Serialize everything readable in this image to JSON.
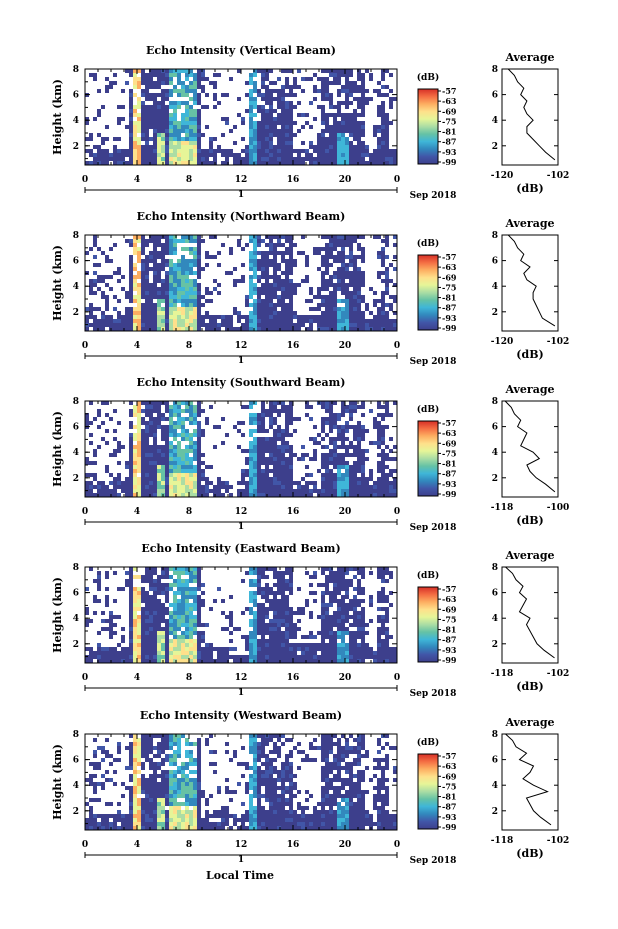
{
  "xlabel": "Local Time",
  "colorbar_unit": "(dB)",
  "colorbar_ticks": [
    "-57",
    "-63",
    "-69",
    "-75",
    "-81",
    "-87",
    "-93",
    "-99"
  ],
  "colorbar_colors": [
    "#d73027",
    "#f46d43",
    "#fdae61",
    "#fee08b",
    "#e6f598",
    "#abdda4",
    "#66c2a5",
    "#3fb6d8",
    "#3288bd",
    "#4156a8",
    "#3d3f8c"
  ],
  "chart_data": [
    {
      "type": "heatmap",
      "title": "Echo Intensity (Vertical Beam)",
      "ylabel": "Height (km)",
      "xticks": [
        "0",
        "4",
        "8",
        "12",
        "16",
        "20",
        "0"
      ],
      "yticks": [
        "2",
        "4",
        "6",
        "8"
      ],
      "day_label": "1",
      "month_label": "Sep 2018",
      "xlim": [
        0,
        24
      ],
      "ylim": [
        0.5,
        8
      ],
      "profile": {
        "title": "Average",
        "xlabel": "(dB)",
        "xticks": [
          "-120",
          "-102"
        ],
        "yticks": [
          "2",
          "4",
          "6",
          "8"
        ],
        "xlim": [
          -120,
          -102
        ],
        "ylim": [
          0.5,
          8
        ],
        "height_km": [
          0.9,
          1.5,
          2.0,
          2.5,
          3.0,
          3.5,
          4.0,
          4.5,
          5.0,
          5.5,
          6.0,
          6.5,
          7.0,
          7.5,
          8.0
        ],
        "value_db": [
          -103,
          -106,
          -108,
          -110,
          -112,
          -112,
          -110,
          -112,
          -113,
          -112,
          -114,
          -113,
          -115,
          -116,
          -118
        ]
      }
    },
    {
      "type": "heatmap",
      "title": "Echo Intensity (Northward Beam)",
      "ylabel": "Height (km)",
      "xticks": [
        "0",
        "4",
        "8",
        "12",
        "16",
        "20",
        "0"
      ],
      "yticks": [
        "2",
        "4",
        "6",
        "8"
      ],
      "day_label": "1",
      "month_label": "Sep 2018",
      "xlim": [
        0,
        24
      ],
      "ylim": [
        0.5,
        8
      ],
      "profile": {
        "title": "Average",
        "xlabel": "(dB)",
        "xticks": [
          "-120",
          "-102"
        ],
        "yticks": [
          "2",
          "4",
          "6",
          "8"
        ],
        "xlim": [
          -120,
          -102
        ],
        "ylim": [
          0.5,
          8
        ],
        "height_km": [
          0.9,
          1.5,
          2.0,
          2.5,
          3.0,
          3.5,
          4.0,
          4.5,
          5.0,
          5.5,
          6.0,
          6.5,
          7.0,
          7.5,
          8.0
        ],
        "value_db": [
          -103,
          -107,
          -108,
          -109,
          -110,
          -110,
          -109,
          -112,
          -113,
          -111,
          -114,
          -113,
          -115,
          -116,
          -118
        ]
      }
    },
    {
      "type": "heatmap",
      "title": "Echo Intensity (Southward Beam)",
      "ylabel": "Height (km)",
      "xticks": [
        "0",
        "4",
        "8",
        "12",
        "16",
        "20",
        "0"
      ],
      "yticks": [
        "2",
        "4",
        "6",
        "8"
      ],
      "day_label": "1",
      "month_label": "Sep 2018",
      "xlim": [
        0,
        24
      ],
      "ylim": [
        0.5,
        8
      ],
      "profile": {
        "title": "Average",
        "xlabel": "(dB)",
        "xticks": [
          "-118",
          "-100"
        ],
        "yticks": [
          "2",
          "4",
          "6",
          "8"
        ],
        "xlim": [
          -118,
          -100
        ],
        "ylim": [
          0.5,
          8
        ],
        "height_km": [
          0.9,
          1.5,
          2.0,
          2.5,
          3.0,
          3.5,
          4.0,
          4.5,
          5.0,
          5.5,
          6.0,
          6.5,
          7.0,
          7.5,
          8.0
        ],
        "value_db": [
          -101,
          -104,
          -107,
          -109,
          -110,
          -106,
          -108,
          -112,
          -111,
          -110,
          -113,
          -112,
          -114,
          -115,
          -117
        ]
      }
    },
    {
      "type": "heatmap",
      "title": "Echo Intensity (Eastward Beam)",
      "ylabel": "Height (km)",
      "xticks": [
        "0",
        "4",
        "8",
        "12",
        "16",
        "20",
        "0"
      ],
      "yticks": [
        "2",
        "4",
        "6",
        "8"
      ],
      "day_label": "1",
      "month_label": "Sep 2018",
      "xlim": [
        0,
        24
      ],
      "ylim": [
        0.5,
        8
      ],
      "profile": {
        "title": "Average",
        "xlabel": "(dB)",
        "xticks": [
          "-118",
          "-102"
        ],
        "yticks": [
          "2",
          "4",
          "6",
          "8"
        ],
        "xlim": [
          -118,
          -102
        ],
        "ylim": [
          0.5,
          8
        ],
        "height_km": [
          0.9,
          1.5,
          2.0,
          2.5,
          3.0,
          3.5,
          4.0,
          4.5,
          5.0,
          5.5,
          6.0,
          6.5,
          7.0,
          7.5,
          8.0
        ],
        "value_db": [
          -103,
          -106,
          -108,
          -109,
          -110,
          -111,
          -110,
          -113,
          -112,
          -111,
          -113,
          -112,
          -114,
          -115,
          -117
        ]
      }
    },
    {
      "type": "heatmap",
      "title": "Echo Intensity (Westward Beam)",
      "ylabel": "Height (km)",
      "xticks": [
        "0",
        "4",
        "8",
        "12",
        "16",
        "20",
        "0"
      ],
      "yticks": [
        "2",
        "4",
        "6",
        "8"
      ],
      "day_label": "1",
      "month_label": "Sep 2018",
      "xlim": [
        0,
        24
      ],
      "ylim": [
        0.5,
        8
      ],
      "profile": {
        "title": "Average",
        "xlabel": "(dB)",
        "xticks": [
          "-118",
          "-102"
        ],
        "yticks": [
          "2",
          "4",
          "6",
          "8"
        ],
        "xlim": [
          -118,
          -102
        ],
        "ylim": [
          0.5,
          8
        ],
        "height_km": [
          0.9,
          1.5,
          2.0,
          2.5,
          3.0,
          3.5,
          4.0,
          4.5,
          5.0,
          5.5,
          6.0,
          6.5,
          7.0,
          7.5,
          8.0
        ],
        "value_db": [
          -104,
          -107,
          -109,
          -110,
          -111,
          -105,
          -109,
          -112,
          -110,
          -109,
          -113,
          -111,
          -114,
          -115,
          -117
        ]
      }
    }
  ]
}
